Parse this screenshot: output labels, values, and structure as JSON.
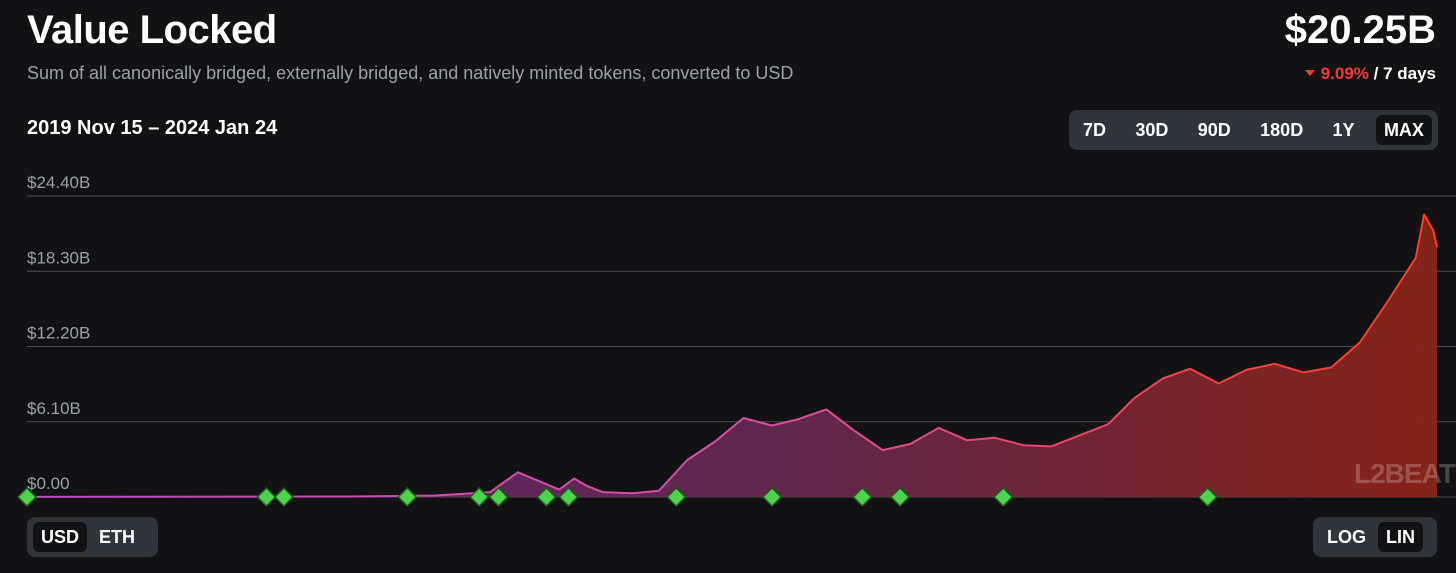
{
  "header": {
    "title": "Value Locked",
    "subtitle": "Sum of all canonically bridged, externally bridged, and natively minted tokens, converted to USD",
    "total": "$20.25B",
    "change_pct": "9.09%",
    "change_period": "/ 7 days",
    "change_direction": "down"
  },
  "date_range": "2019 Nov 15 – 2024 Jan 24",
  "range_buttons": [
    "7D",
    "30D",
    "90D",
    "180D",
    "1Y",
    "MAX"
  ],
  "range_active": "MAX",
  "unit_buttons": [
    "USD",
    "ETH"
  ],
  "unit_active": "USD",
  "scale_buttons": [
    "LOG",
    "LIN"
  ],
  "scale_active": "LIN",
  "watermark": "L2BEAT",
  "colors": {
    "line_start": "#b84fc2",
    "line_end": "#ff3b1f",
    "milestone": "#4dd34d",
    "grid": "#4a4d52"
  },
  "chart_data": {
    "type": "area",
    "x_range": [
      "2019-11-15",
      "2024-01-24"
    ],
    "y_ticks": [
      "$24.40B",
      "$18.30B",
      "$12.20B",
      "$6.10B",
      "$0.00"
    ],
    "y_tick_values": [
      24.4,
      18.3,
      12.2,
      6.1,
      0
    ],
    "ylim": [
      0,
      24.4
    ],
    "y_unit": "billion USD",
    "grid": true,
    "series": [
      {
        "x": [
          "2019-11-15",
          "2020-03-01",
          "2020-07-01",
          "2020-11-01",
          "2021-02-01",
          "2021-04-01",
          "2021-05-01",
          "2021-06-15",
          "2021-07-01",
          "2021-07-15",
          "2021-08-01",
          "2021-09-01",
          "2021-10-01",
          "2021-11-01",
          "2021-12-01",
          "2022-01-01",
          "2022-02-01",
          "2022-03-01",
          "2022-04-01",
          "2022-05-01",
          "2022-06-01",
          "2022-07-01",
          "2022-08-01",
          "2022-09-01",
          "2022-10-01",
          "2022-11-01",
          "2022-12-01",
          "2023-01-01",
          "2023-02-01",
          "2023-03-01",
          "2023-04-01",
          "2023-05-01",
          "2023-06-01",
          "2023-07-01",
          "2023-08-01",
          "2023-09-01",
          "2023-10-01",
          "2023-11-01",
          "2023-12-01",
          "2024-01-01",
          "2024-01-10",
          "2024-01-20",
          "2024-01-24"
        ],
        "values": [
          0.01,
          0.02,
          0.03,
          0.04,
          0.12,
          0.4,
          2.0,
          0.6,
          1.5,
          0.9,
          0.4,
          0.3,
          0.5,
          3.0,
          4.5,
          6.4,
          5.8,
          6.3,
          7.1,
          5.4,
          3.8,
          4.3,
          5.6,
          4.6,
          4.8,
          4.2,
          4.1,
          5.0,
          5.9,
          8.0,
          9.6,
          10.4,
          9.2,
          10.3,
          10.8,
          10.1,
          10.5,
          12.5,
          15.8,
          19.4,
          22.9,
          21.6,
          20.25
        ]
      }
    ],
    "milestones": [
      "2019-11-15",
      "2020-08-01",
      "2020-08-20",
      "2021-01-01",
      "2021-03-20",
      "2021-04-10",
      "2021-06-01",
      "2021-06-25",
      "2021-10-20",
      "2022-02-01",
      "2022-05-10",
      "2022-06-20",
      "2022-10-10",
      "2023-05-20"
    ]
  }
}
